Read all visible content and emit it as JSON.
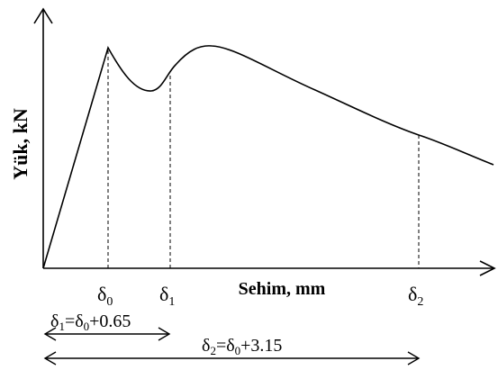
{
  "chart_data": {
    "type": "line",
    "ylabel": "Yük, kN",
    "xlabel": "Sehim, mm",
    "markers": [
      {
        "symbol": "δ",
        "sub": "0"
      },
      {
        "symbol": "δ",
        "sub": "1"
      },
      {
        "symbol": "δ",
        "sub": "2"
      }
    ],
    "annotations": [
      {
        "lhs": "δ",
        "lhs_sub": "1",
        "eq": "=",
        "rhs": "δ",
        "rhs_sub": "0",
        "addend": "+0.65"
      },
      {
        "lhs": "δ",
        "lhs_sub": "2",
        "eq": "=",
        "rhs": "δ",
        "rhs_sub": "0",
        "addend": "+3.15"
      }
    ],
    "series": [
      {
        "values_description": "load-deflection curve",
        "x": [
          0,
          0.5,
          1.0,
          1.5,
          2.0,
          2.5,
          3.0,
          3.5,
          4.0,
          4.5,
          5.0
        ],
        "y": [
          0,
          100,
          78,
          98,
          105,
          98,
          90,
          82,
          76,
          60,
          48
        ]
      }
    ],
    "grid": false,
    "legend": "none"
  },
  "colors": {
    "ink": "#000000"
  }
}
